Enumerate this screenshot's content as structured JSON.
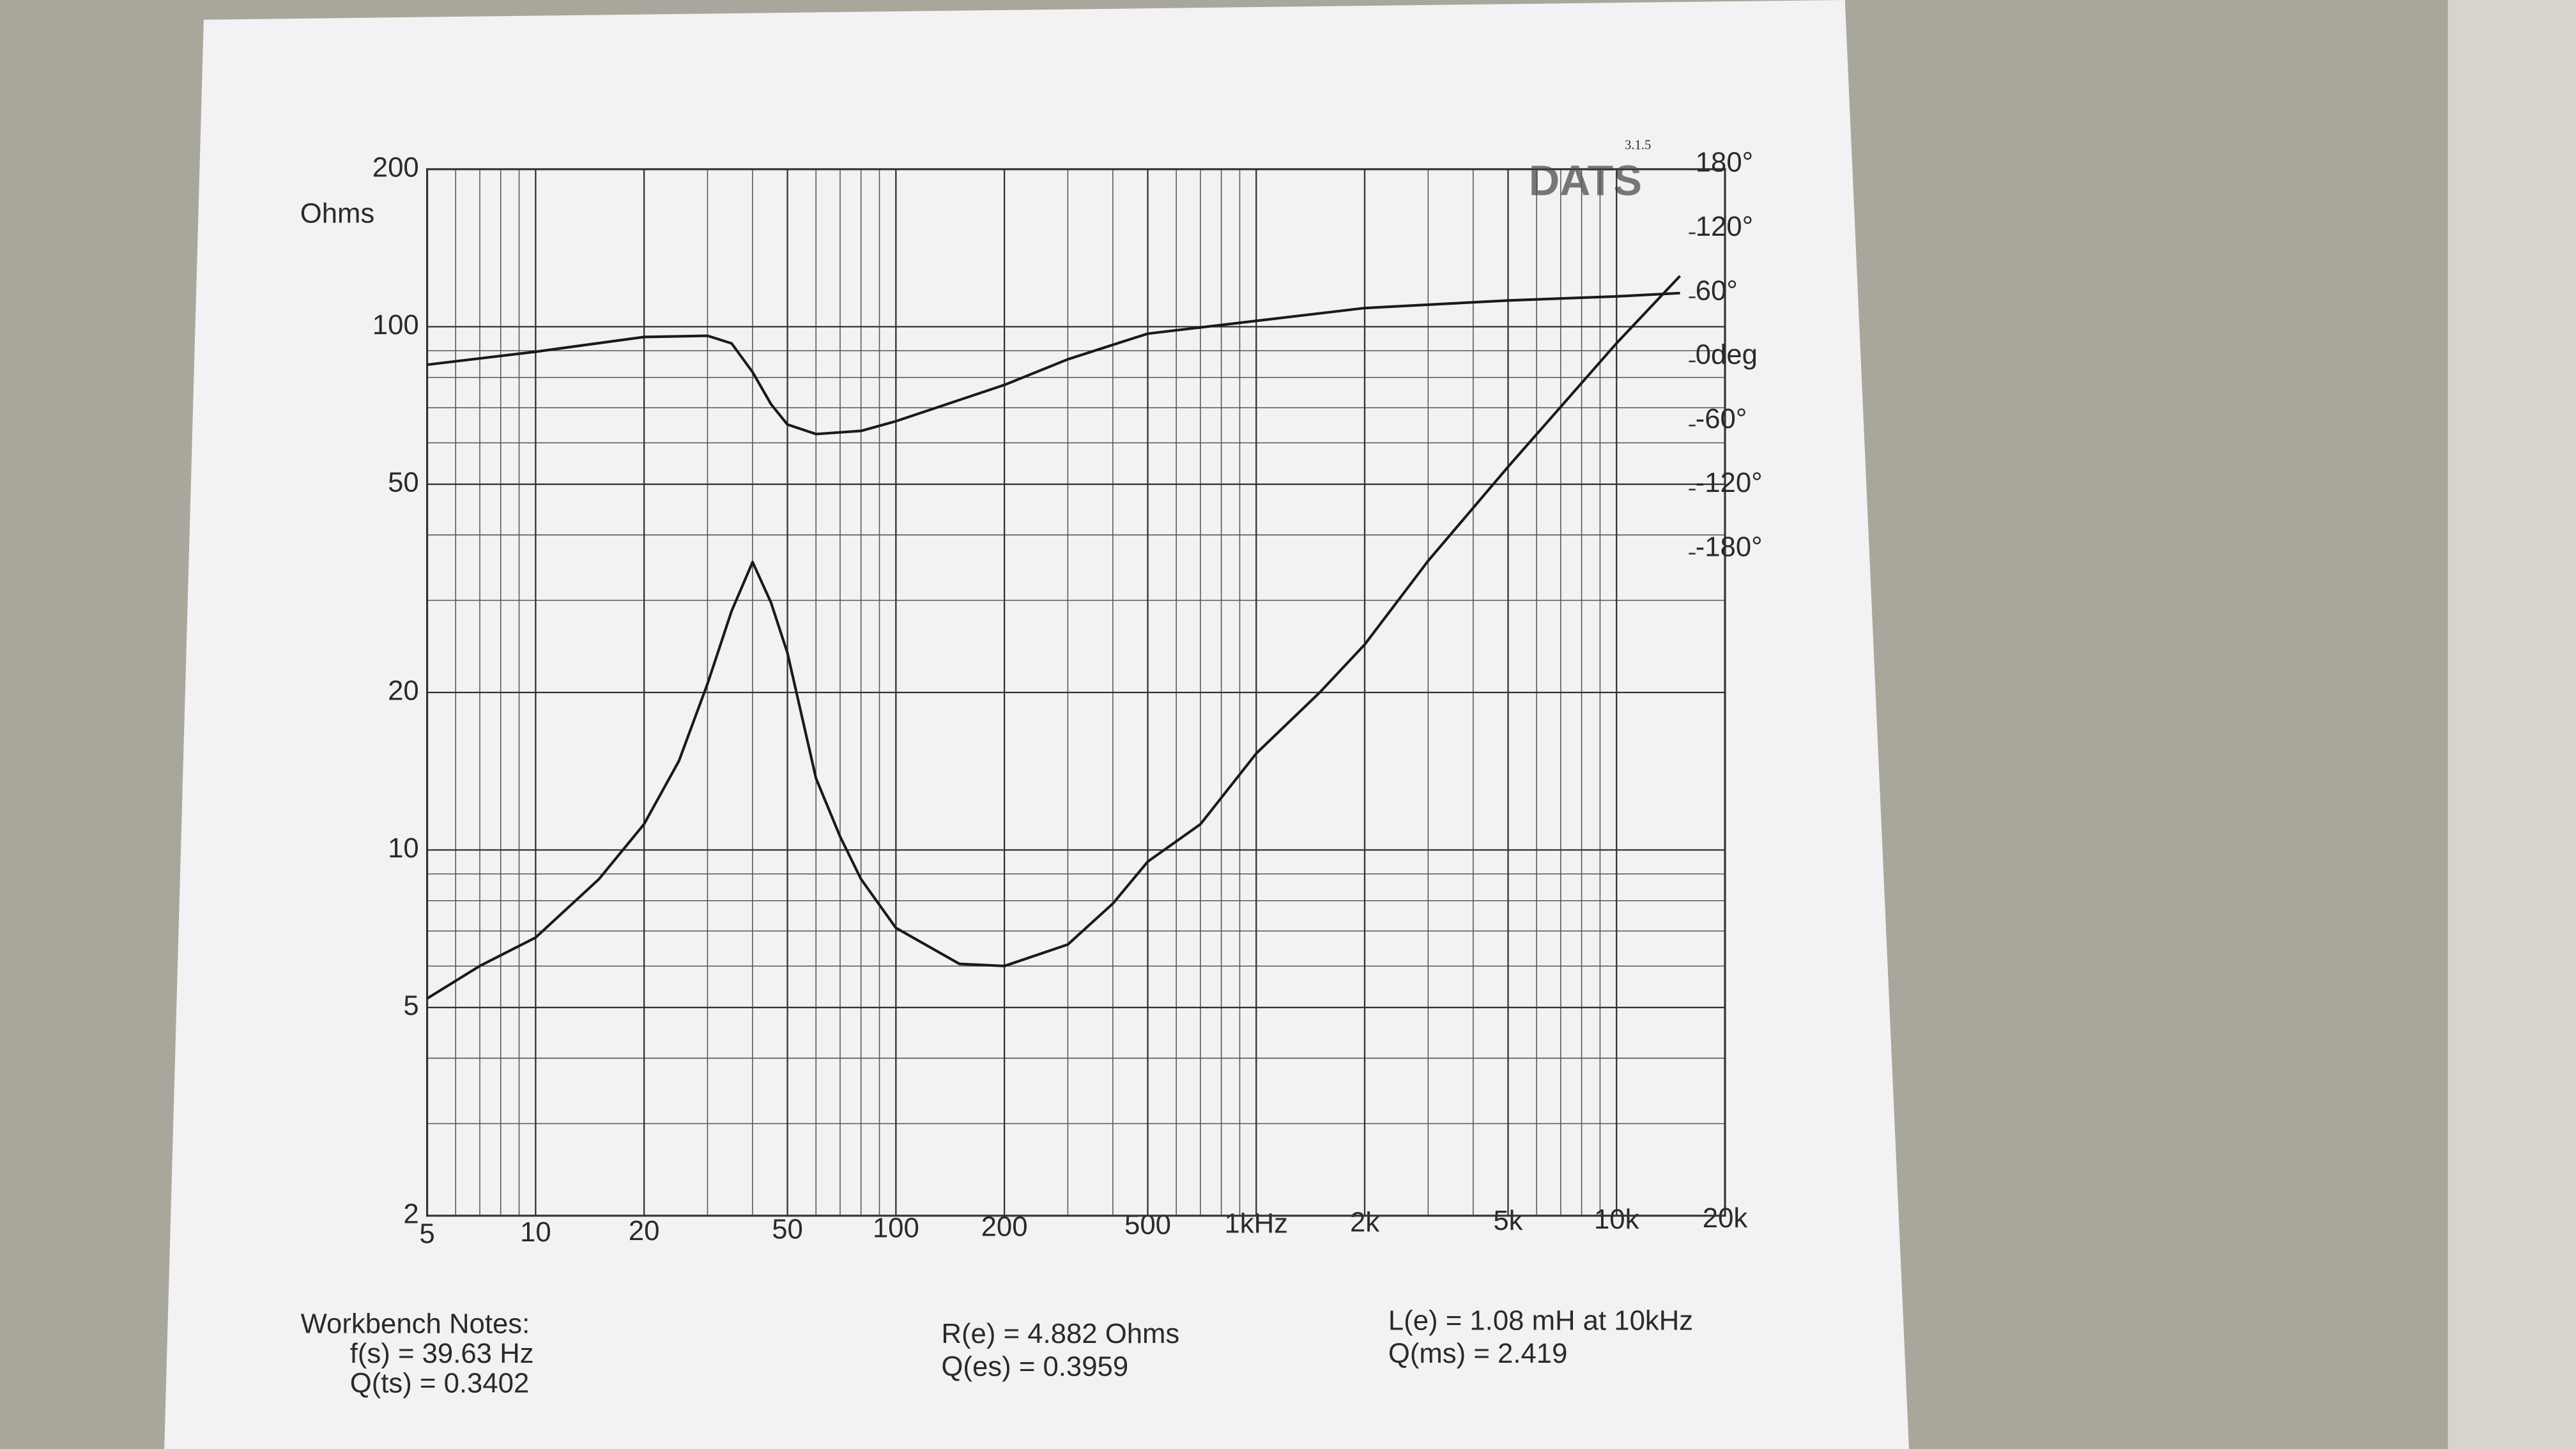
{
  "chart_data": {
    "type": "line",
    "ylabel": "Ohms",
    "brand": "DATS",
    "version": "3.1.5",
    "xscale": "log",
    "yscale": "log",
    "grid": true,
    "xlim": [
      5,
      20000
    ],
    "xticks": [
      5,
      10,
      20,
      50,
      100,
      200,
      500,
      {
        "value": 1000,
        "label": "1kHz"
      },
      {
        "value": 2000,
        "label": "2k"
      },
      {
        "value": 5000,
        "label": "5k"
      },
      {
        "value": 10000,
        "label": "10k"
      },
      {
        "value": 20000,
        "label": "20k"
      }
    ],
    "ylim": [
      2,
      200
    ],
    "yticks": [
      2,
      5,
      10,
      20,
      50,
      100,
      200
    ],
    "y2lim": [
      -800,
      180
    ],
    "y2ticks": [
      {
        "value": 180,
        "label": "180°"
      },
      {
        "value": 120,
        "label": "120°"
      },
      {
        "value": 60,
        "label": "60°"
      },
      {
        "value": 0,
        "label": "0deg"
      },
      {
        "value": -60,
        "label": "-60°"
      },
      {
        "value": -120,
        "label": "-120°"
      },
      {
        "value": -180,
        "label": "-180°"
      }
    ],
    "series": [
      {
        "color": "#1a1a1a",
        "x": [
          5,
          7,
          10,
          15,
          20,
          25,
          30,
          35,
          40,
          45,
          50,
          60,
          70,
          80,
          100,
          150,
          200,
          300,
          400,
          500,
          700,
          1000,
          1500,
          2000,
          3000,
          5000,
          10000,
          15000
        ],
        "values": [
          5.2,
          6,
          6.8,
          8.8,
          11.2,
          14.8,
          20.8,
          28.6,
          35.5,
          29.7,
          23.8,
          13.7,
          10.6,
          8.8,
          7.1,
          6.06,
          6.0,
          6.6,
          7.9,
          9.5,
          11.2,
          15.3,
          20,
          24.7,
          35.7,
          54,
          93,
          125
        ]
      },
      {
        "color": "#1a1a1a",
        "axis": "y2",
        "x": [
          5,
          10,
          20,
          30,
          35,
          40,
          45,
          50,
          60,
          80,
          100,
          200,
          300,
          500,
          1000,
          2000,
          5000,
          10000,
          15000
        ],
        "values": [
          -3,
          9,
          23,
          24,
          17,
          -10,
          -40,
          -59,
          -68,
          -65,
          -56,
          -22,
          2,
          26,
          38,
          50,
          57,
          61,
          64
        ]
      }
    ],
    "notes": {
      "title": "Workbench Notes:",
      "fs": "f(s) = 39.63 Hz",
      "qts": "Q(ts) = 0.3402",
      "re": "R(e) = 4.882 Ohms",
      "qes": "Q(es) = 0.3959",
      "le": "L(e) = 1.08 mH at 10kHz",
      "qms": "Q(ms) = 2.419"
    }
  }
}
